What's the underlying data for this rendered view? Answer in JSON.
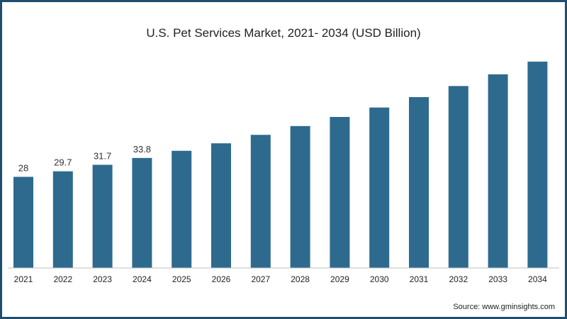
{
  "chart_data": {
    "type": "bar",
    "title": "U.S. Pet Services Market, 2021- 2034 (USD Billion)",
    "xlabel": "",
    "ylabel": "",
    "categories": [
      "2021",
      "2022",
      "2023",
      "2024",
      "2025",
      "2026",
      "2027",
      "2028",
      "2029",
      "2030",
      "2031",
      "2032",
      "2033",
      "2034"
    ],
    "values": [
      28,
      29.7,
      31.7,
      33.8,
      36.0,
      38.3,
      40.9,
      43.6,
      46.4,
      49.3,
      52.5,
      55.9,
      59.5,
      63.4
    ],
    "data_labels": [
      "28",
      "29.7",
      "31.7",
      "33.8",
      null,
      null,
      null,
      null,
      null,
      null,
      null,
      null,
      null,
      null
    ],
    "ylim": [
      0,
      66
    ],
    "bar_color": "#2e6a8e",
    "grid": false,
    "legend": "none"
  },
  "footer": {
    "source": "Source: www.gminsights.com"
  }
}
